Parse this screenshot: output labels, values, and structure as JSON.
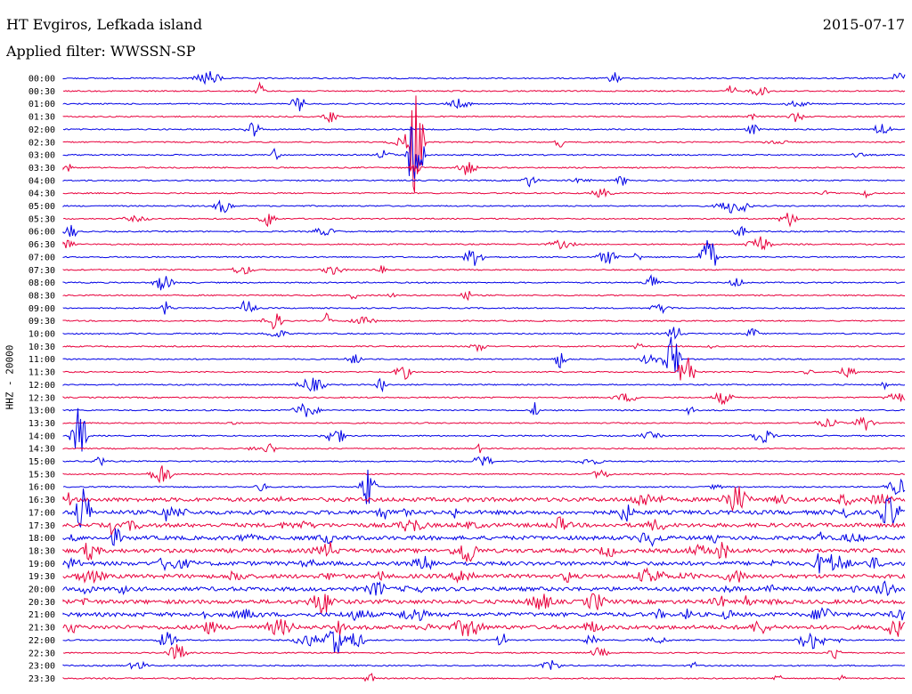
{
  "header": {
    "station": "HT Evgiros, Lefkada island",
    "filter": "Applied filter: WWSSN-SP",
    "date": "2015-07-17",
    "channel": "HHZ - 20000"
  },
  "chart_data": {
    "type": "line",
    "y_tick_labels": [
      "00:00",
      "00:30",
      "01:00",
      "01:30",
      "02:00",
      "02:30",
      "03:00",
      "03:30",
      "04:00",
      "04:30",
      "05:00",
      "05:30",
      "06:00",
      "06:30",
      "07:00",
      "07:30",
      "08:00",
      "08:30",
      "09:00",
      "09:30",
      "10:00",
      "10:30",
      "11:00",
      "11:30",
      "12:00",
      "12:30",
      "13:00",
      "13:30",
      "14:00",
      "14:30",
      "15:00",
      "15:30",
      "16:00",
      "16:30",
      "17:00",
      "17:30",
      "18:00",
      "18:30",
      "19:00",
      "19:30",
      "20:00",
      "20:30",
      "21:00",
      "21:30",
      "22:00",
      "22:30",
      "23:00",
      "23:30"
    ],
    "trace_colors": [
      "#0000e6",
      "#e8003c"
    ],
    "grid": false
  }
}
